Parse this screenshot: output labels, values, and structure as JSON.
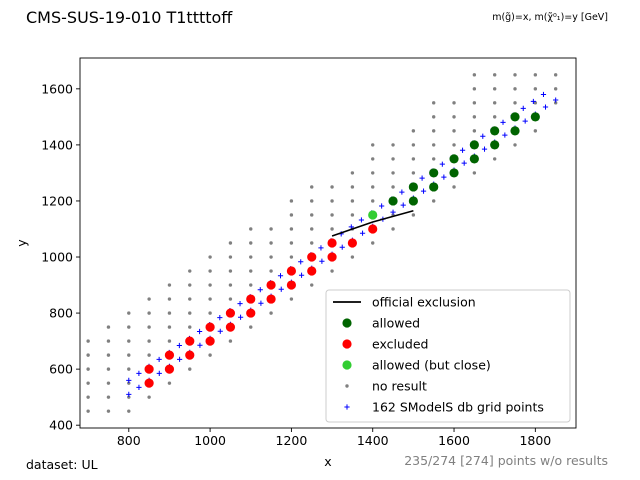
{
  "figure": {
    "title": "CMS-SUS-19-010 T1ttttoff",
    "subtitle": "m(g̃)=x, m(χ̃⁰₁)=y [GeV]",
    "footer_left": "dataset: UL",
    "footer_right": "235/274 [274] points w/o results"
  },
  "chart_data": {
    "type": "scatter",
    "xlabel": "x",
    "ylabel": "y",
    "xlim": [
      680,
      1900
    ],
    "ylim": [
      390,
      1710
    ],
    "xticks": [
      800,
      1000,
      1200,
      1400,
      1600,
      1800
    ],
    "yticks": [
      400,
      600,
      800,
      1000,
      1200,
      1400,
      1600
    ],
    "grid": false,
    "legend_placement": "lower-right",
    "legend": [
      {
        "label": "official exclusion",
        "kind": "line",
        "color": "#000000"
      },
      {
        "label": "allowed",
        "kind": "dot",
        "color": "#006400"
      },
      {
        "label": "excluded",
        "kind": "dot",
        "color": "#ff0000"
      },
      {
        "label": "allowed (but close)",
        "kind": "dot",
        "color": "#32cd32"
      },
      {
        "label": "no result",
        "kind": "small",
        "color": "#808080"
      },
      {
        "label": "162 SModelS db grid points",
        "kind": "plus",
        "color": "#0000ff"
      }
    ],
    "official_exclusion": [
      [
        1300,
        1075
      ],
      [
        1400,
        1125
      ],
      [
        1500,
        1165
      ]
    ],
    "allowed": [
      [
        1450,
        1200
      ],
      [
        1500,
        1250
      ],
      [
        1550,
        1300
      ],
      [
        1600,
        1350
      ],
      [
        1650,
        1400
      ],
      [
        1700,
        1450
      ],
      [
        1750,
        1500
      ],
      [
        1500,
        1200
      ],
      [
        1550,
        1250
      ],
      [
        1600,
        1300
      ],
      [
        1650,
        1350
      ],
      [
        1700,
        1400
      ],
      [
        1750,
        1450
      ],
      [
        1800,
        1500
      ]
    ],
    "excluded": [
      [
        850,
        600
      ],
      [
        900,
        650
      ],
      [
        950,
        700
      ],
      [
        1000,
        750
      ],
      [
        1050,
        800
      ],
      [
        1100,
        850
      ],
      [
        1150,
        900
      ],
      [
        1200,
        950
      ],
      [
        1250,
        1000
      ],
      [
        1300,
        1050
      ],
      [
        850,
        550
      ],
      [
        900,
        600
      ],
      [
        950,
        650
      ],
      [
        1000,
        700
      ],
      [
        1050,
        750
      ],
      [
        1100,
        800
      ],
      [
        1150,
        850
      ],
      [
        1200,
        900
      ],
      [
        1250,
        950
      ],
      [
        1300,
        1000
      ],
      [
        1350,
        1050
      ],
      [
        1400,
        1100
      ]
    ],
    "allowed_but_close": [
      [
        1400,
        1150
      ]
    ],
    "grid_band_lower": {
      "x_start": 800,
      "y_start": 510,
      "x_end": 1850,
      "y_end": 1560,
      "step": 25
    },
    "grid_band_upper": {
      "x_start": 800,
      "y_start": 560,
      "x_end": 1820,
      "y_end": 1580,
      "step": 25
    },
    "no_result_columns": [
      {
        "x": 700,
        "y_min": 450,
        "y_max": 700
      },
      {
        "x": 750,
        "y_min": 450,
        "y_max": 750
      },
      {
        "x": 800,
        "y_min": 450,
        "y_max": 800
      },
      {
        "x": 850,
        "y_min": 500,
        "y_max": 850
      },
      {
        "x": 900,
        "y_min": 550,
        "y_max": 900
      },
      {
        "x": 950,
        "y_min": 600,
        "y_max": 950
      },
      {
        "x": 1000,
        "y_min": 650,
        "y_max": 1000
      },
      {
        "x": 1050,
        "y_min": 700,
        "y_max": 1050
      },
      {
        "x": 1100,
        "y_min": 750,
        "y_max": 1100
      },
      {
        "x": 1150,
        "y_min": 800,
        "y_max": 1100
      },
      {
        "x": 1200,
        "y_min": 850,
        "y_max": 1200
      },
      {
        "x": 1250,
        "y_min": 900,
        "y_max": 1250
      },
      {
        "x": 1300,
        "y_min": 950,
        "y_max": 1250
      },
      {
        "x": 1350,
        "y_min": 1000,
        "y_max": 1300
      },
      {
        "x": 1400,
        "y_min": 1050,
        "y_max": 1400
      },
      {
        "x": 1450,
        "y_min": 1100,
        "y_max": 1400
      },
      {
        "x": 1500,
        "y_min": 1150,
        "y_max": 1450
      },
      {
        "x": 1550,
        "y_min": 1200,
        "y_max": 1550
      },
      {
        "x": 1600,
        "y_min": 1250,
        "y_max": 1550
      },
      {
        "x": 1650,
        "y_min": 1300,
        "y_max": 1650
      },
      {
        "x": 1700,
        "y_min": 1350,
        "y_max": 1650
      },
      {
        "x": 1750,
        "y_min": 1400,
        "y_max": 1650
      },
      {
        "x": 1800,
        "y_min": 1450,
        "y_max": 1650
      },
      {
        "x": 1850,
        "y_min": 1550,
        "y_max": 1650
      }
    ]
  }
}
